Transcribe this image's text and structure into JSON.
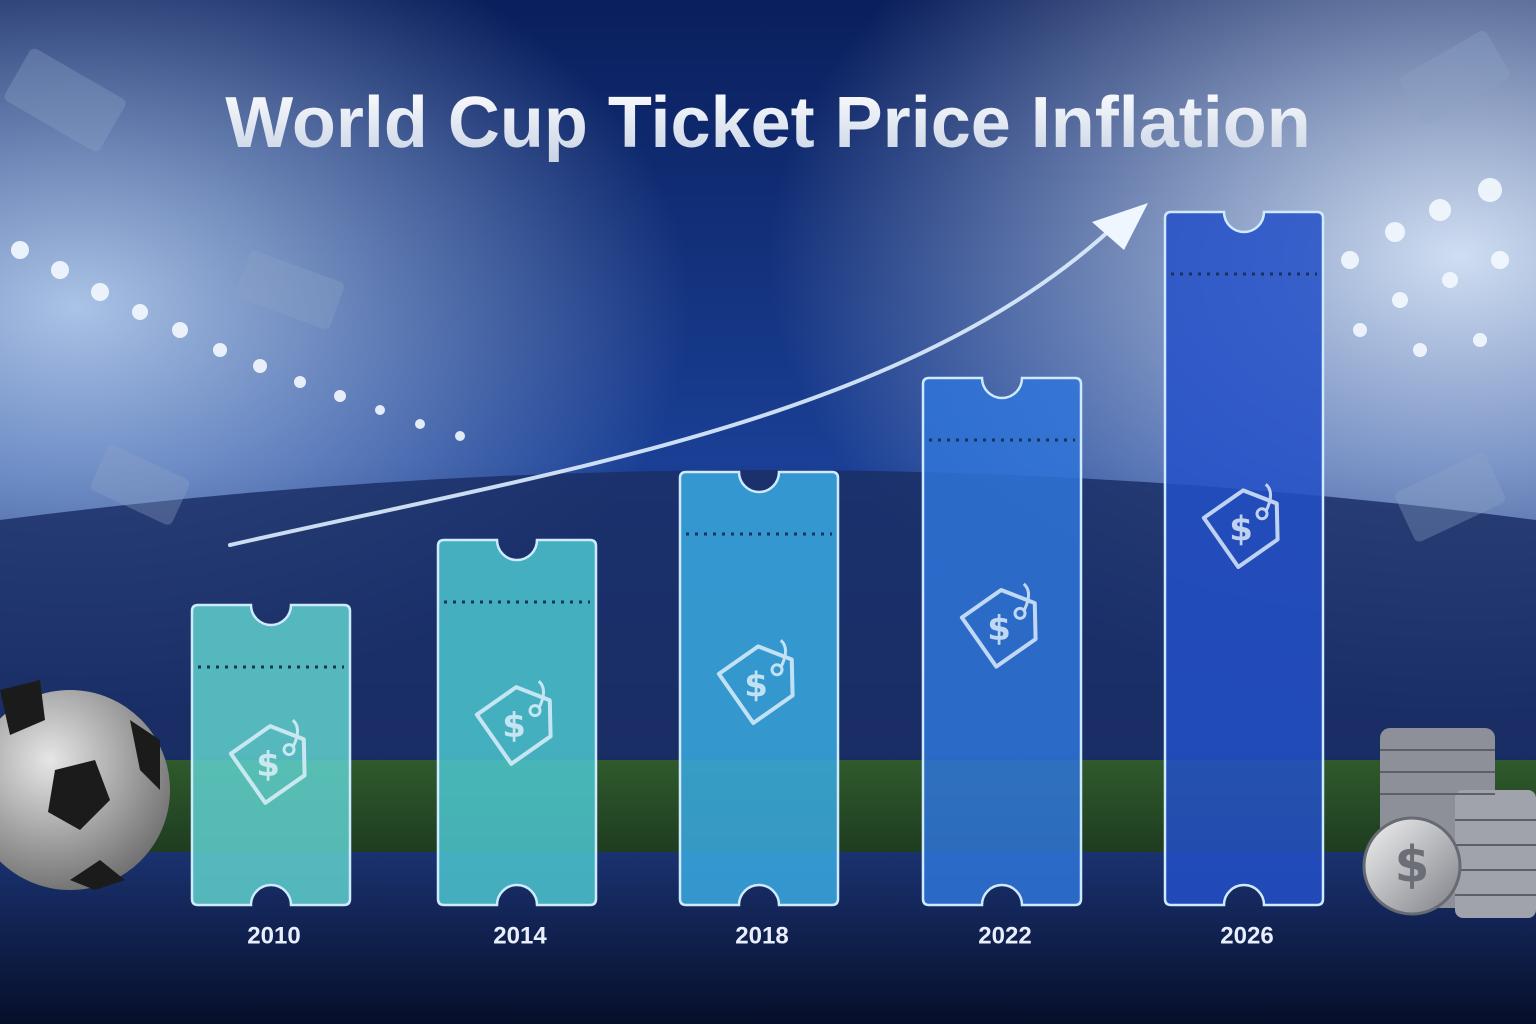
{
  "chart_data": {
    "type": "bar",
    "title": "World Cup Ticket Price Inflation",
    "categories": [
      "2010",
      "2014",
      "2018",
      "2022",
      "2026"
    ],
    "values": [
      300,
      365,
      433,
      527,
      693
    ],
    "colors": [
      "#5fd0cc",
      "#4cc6cf",
      "#3aa9e0",
      "#2f74d8",
      "#2350c8"
    ]
  }
}
